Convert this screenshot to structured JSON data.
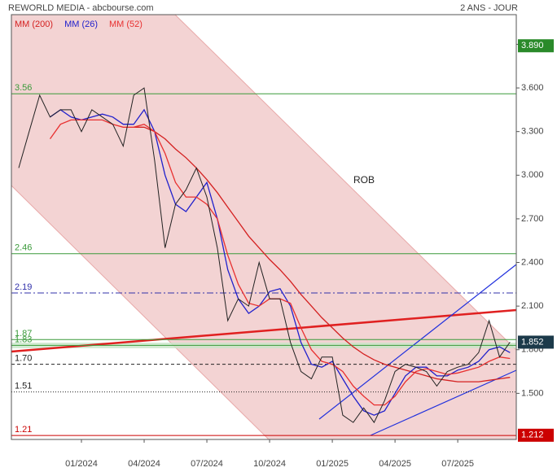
{
  "chart_data": {
    "type": "line",
    "title": "REWORLD MEDIA - abcbourse.com",
    "subtitle": "2 ANS - JOUR",
    "annotation": "ROB",
    "x": [
      -3,
      -2.5,
      -2,
      -1.5,
      -1,
      -0.5,
      0,
      0.5,
      1,
      1.5,
      2,
      2.5,
      3,
      3.5,
      4,
      4.5,
      5,
      5.5,
      6,
      6.5,
      7,
      7.5,
      8,
      8.5,
      9,
      9.5,
      10,
      10.5,
      11,
      11.5,
      12,
      12.5,
      13,
      13.5,
      14,
      14.5,
      15,
      15.5,
      16,
      16.5,
      17,
      17.5,
      18,
      18.5,
      19,
      19.5,
      20,
      20.5
    ],
    "price": {
      "color": "#222222",
      "values": [
        3.05,
        3.3,
        3.55,
        3.4,
        3.45,
        3.45,
        3.3,
        3.45,
        3.4,
        3.35,
        3.2,
        3.55,
        3.6,
        3.1,
        2.5,
        2.8,
        2.9,
        3.05,
        2.85,
        2.5,
        2.0,
        2.15,
        2.1,
        2.4,
        2.15,
        2.15,
        1.85,
        1.65,
        1.6,
        1.75,
        1.75,
        1.35,
        1.3,
        1.4,
        1.3,
        1.45,
        1.65,
        1.7,
        1.68,
        1.65,
        1.55,
        1.65,
        1.68,
        1.7,
        1.78,
        2.0,
        1.75,
        1.852
      ]
    },
    "series": [
      {
        "name": "MM (200)",
        "color": "#d42020",
        "values": [
          null,
          null,
          null,
          null,
          null,
          null,
          null,
          null,
          null,
          null,
          null,
          3.33,
          3.33,
          3.3,
          3.25,
          3.18,
          3.12,
          3.05,
          2.97,
          2.88,
          2.78,
          2.68,
          2.58,
          2.5,
          2.42,
          2.35,
          2.27,
          2.18,
          2.1,
          2.02,
          1.95,
          1.88,
          1.82,
          1.77,
          1.73,
          1.7,
          1.68,
          1.66,
          1.64,
          1.62,
          1.6,
          1.59,
          1.58,
          1.58,
          1.58,
          1.59,
          1.6,
          1.61
        ]
      },
      {
        "name": "MM (26)",
        "color": "#2020cc",
        "values": [
          null,
          null,
          null,
          3.4,
          3.45,
          3.4,
          3.38,
          3.4,
          3.42,
          3.4,
          3.35,
          3.35,
          3.45,
          3.3,
          3.0,
          2.8,
          2.75,
          2.85,
          2.95,
          2.7,
          2.35,
          2.15,
          2.05,
          2.1,
          2.2,
          2.22,
          2.1,
          1.85,
          1.7,
          1.68,
          1.72,
          1.6,
          1.48,
          1.38,
          1.35,
          1.38,
          1.5,
          1.62,
          1.68,
          1.68,
          1.62,
          1.62,
          1.66,
          1.68,
          1.72,
          1.8,
          1.82,
          1.78
        ]
      },
      {
        "name": "MM (52)",
        "color": "#e83030",
        "values": [
          null,
          null,
          null,
          3.25,
          3.35,
          3.38,
          3.38,
          3.38,
          3.38,
          3.35,
          3.33,
          3.33,
          3.35,
          3.3,
          3.15,
          2.95,
          2.85,
          2.85,
          2.8,
          2.7,
          2.45,
          2.25,
          2.12,
          2.1,
          2.15,
          2.15,
          2.12,
          1.95,
          1.8,
          1.72,
          1.7,
          1.65,
          1.55,
          1.48,
          1.42,
          1.42,
          1.48,
          1.58,
          1.65,
          1.67,
          1.65,
          1.63,
          1.64,
          1.66,
          1.68,
          1.72,
          1.75,
          1.74
        ]
      }
    ],
    "xlim": [
      -3.35,
      20.8
    ],
    "xticks": [
      {
        "value": 0,
        "label": "01/2024"
      },
      {
        "value": 3,
        "label": "04/2024"
      },
      {
        "value": 6,
        "label": "07/2024"
      },
      {
        "value": 9,
        "label": "10/2024"
      },
      {
        "value": 12,
        "label": "01/2025"
      },
      {
        "value": 15,
        "label": "04/2025"
      },
      {
        "value": 18,
        "label": "07/2025"
      }
    ],
    "ylim": [
      1.183,
      4.104
    ],
    "yticks": [
      {
        "value": 1.5,
        "label": "1.500"
      },
      {
        "value": 1.8,
        "label": "1.800"
      },
      {
        "value": 2.1,
        "label": "2.100"
      },
      {
        "value": 2.4,
        "label": "2.400"
      },
      {
        "value": 2.7,
        "label": "2.700"
      },
      {
        "value": 3.0,
        "label": "3.000"
      },
      {
        "value": 3.3,
        "label": "3.300"
      },
      {
        "value": 3.6,
        "label": "3.600"
      },
      {
        "value": 3.9,
        "label": "3.900"
      }
    ],
    "levels": [
      {
        "value": 3.56,
        "label": "3.56",
        "color": "#3a9a3a",
        "style": "solid"
      },
      {
        "value": 2.46,
        "label": "2.46",
        "color": "#3a9a3a",
        "style": "solid"
      },
      {
        "value": 2.19,
        "label": "2.19",
        "color": "#3030aa",
        "style": "dashdot"
      },
      {
        "value": 1.87,
        "label": "1.87",
        "color": "#3a9a3a",
        "style": "solid"
      },
      {
        "value": 1.83,
        "label": "1.83",
        "color": "#3a9a3a",
        "style": "solid"
      },
      {
        "value": 1.7,
        "label": "1.70",
        "color": "#222222",
        "style": "dashed"
      },
      {
        "value": 1.51,
        "label": "1.51",
        "color": "#222222",
        "style": "dotted"
      },
      {
        "value": 1.21,
        "label": "1.21",
        "color": "#cc0000",
        "style": "solid"
      }
    ],
    "price_tags": [
      {
        "value": 3.89,
        "label": "3.890",
        "color": "#2a8a2a"
      },
      {
        "value": 1.852,
        "label": "1.852",
        "color": "#1c3a4a"
      },
      {
        "value": 1.212,
        "label": "1.212",
        "color": "#cc0000"
      }
    ]
  }
}
